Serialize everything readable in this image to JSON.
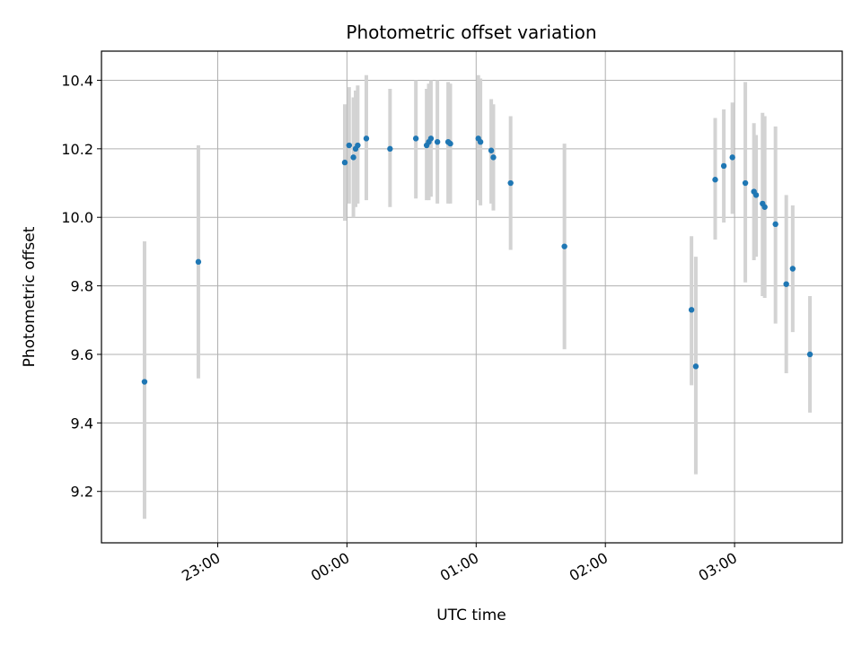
{
  "chart_data": {
    "type": "scatter",
    "title": "Photometric offset variation",
    "xlabel": "UTC time",
    "ylabel": "Photometric offset",
    "x_unit": "UTC hh:mm",
    "xlim": [
      "22:06",
      "03:50"
    ],
    "ylim": [
      9.05,
      10.485
    ],
    "x_ticks": [
      "23:00",
      "00:00",
      "01:00",
      "02:00",
      "03:00"
    ],
    "y_ticks": [
      9.2,
      9.4,
      9.6,
      9.8,
      10.0,
      10.2,
      10.4
    ],
    "y_tick_labels": [
      "9.2",
      "9.4",
      "9.6",
      "9.8",
      "10.0",
      "10.2",
      "10.4"
    ],
    "grid": true,
    "colors": {
      "point": "#1f77b4",
      "errorbar": "#d3d3d3",
      "grid": "#b0b0b0"
    },
    "points": [
      {
        "x": "22:26",
        "y": 9.52,
        "lo": 9.12,
        "hi": 9.93
      },
      {
        "x": "22:51",
        "y": 9.87,
        "lo": 9.53,
        "hi": 10.21
      },
      {
        "x": "23:59",
        "y": 10.16,
        "lo": 9.99,
        "hi": 10.33
      },
      {
        "x": "00:01",
        "y": 10.21,
        "lo": 10.04,
        "hi": 10.38
      },
      {
        "x": "00:03",
        "y": 10.175,
        "lo": 10.0,
        "hi": 10.35
      },
      {
        "x": "00:04",
        "y": 10.2,
        "lo": 10.03,
        "hi": 10.37
      },
      {
        "x": "00:05",
        "y": 10.21,
        "lo": 10.04,
        "hi": 10.385
      },
      {
        "x": "00:09",
        "y": 10.23,
        "lo": 10.05,
        "hi": 10.415
      },
      {
        "x": "00:20",
        "y": 10.2,
        "lo": 10.03,
        "hi": 10.375
      },
      {
        "x": "00:32",
        "y": 10.23,
        "lo": 10.055,
        "hi": 10.4
      },
      {
        "x": "00:37",
        "y": 10.21,
        "lo": 10.05,
        "hi": 10.375
      },
      {
        "x": "00:38",
        "y": 10.22,
        "lo": 10.05,
        "hi": 10.39
      },
      {
        "x": "00:39",
        "y": 10.23,
        "lo": 10.06,
        "hi": 10.4
      },
      {
        "x": "00:42",
        "y": 10.22,
        "lo": 10.04,
        "hi": 10.4
      },
      {
        "x": "00:47",
        "y": 10.22,
        "lo": 10.04,
        "hi": 10.395
      },
      {
        "x": "00:48",
        "y": 10.215,
        "lo": 10.04,
        "hi": 10.39
      },
      {
        "x": "01:01",
        "y": 10.23,
        "lo": 10.05,
        "hi": 10.415
      },
      {
        "x": "01:02",
        "y": 10.22,
        "lo": 10.035,
        "hi": 10.405
      },
      {
        "x": "01:07",
        "y": 10.195,
        "lo": 10.04,
        "hi": 10.345
      },
      {
        "x": "01:08",
        "y": 10.175,
        "lo": 10.02,
        "hi": 10.33
      },
      {
        "x": "01:16",
        "y": 10.1,
        "lo": 9.905,
        "hi": 10.295
      },
      {
        "x": "01:41",
        "y": 9.915,
        "lo": 9.615,
        "hi": 10.215
      },
      {
        "x": "02:40",
        "y": 9.73,
        "lo": 9.51,
        "hi": 9.945
      },
      {
        "x": "02:42",
        "y": 9.565,
        "lo": 9.25,
        "hi": 9.885
      },
      {
        "x": "02:51",
        "y": 10.11,
        "lo": 9.935,
        "hi": 10.29
      },
      {
        "x": "02:55",
        "y": 10.15,
        "lo": 9.985,
        "hi": 10.315
      },
      {
        "x": "02:59",
        "y": 10.175,
        "lo": 10.01,
        "hi": 10.335
      },
      {
        "x": "03:05",
        "y": 10.1,
        "lo": 9.81,
        "hi": 10.395
      },
      {
        "x": "03:09",
        "y": 10.075,
        "lo": 9.875,
        "hi": 10.275
      },
      {
        "x": "03:10",
        "y": 10.065,
        "lo": 9.885,
        "hi": 10.24
      },
      {
        "x": "03:13",
        "y": 10.04,
        "lo": 9.77,
        "hi": 10.305
      },
      {
        "x": "03:14",
        "y": 10.03,
        "lo": 9.765,
        "hi": 10.295
      },
      {
        "x": "03:19",
        "y": 9.98,
        "lo": 9.69,
        "hi": 10.265
      },
      {
        "x": "03:24",
        "y": 9.805,
        "lo": 9.545,
        "hi": 10.065
      },
      {
        "x": "03:27",
        "y": 9.85,
        "lo": 9.665,
        "hi": 10.035
      },
      {
        "x": "03:35",
        "y": 9.6,
        "lo": 9.43,
        "hi": 9.77
      }
    ]
  }
}
